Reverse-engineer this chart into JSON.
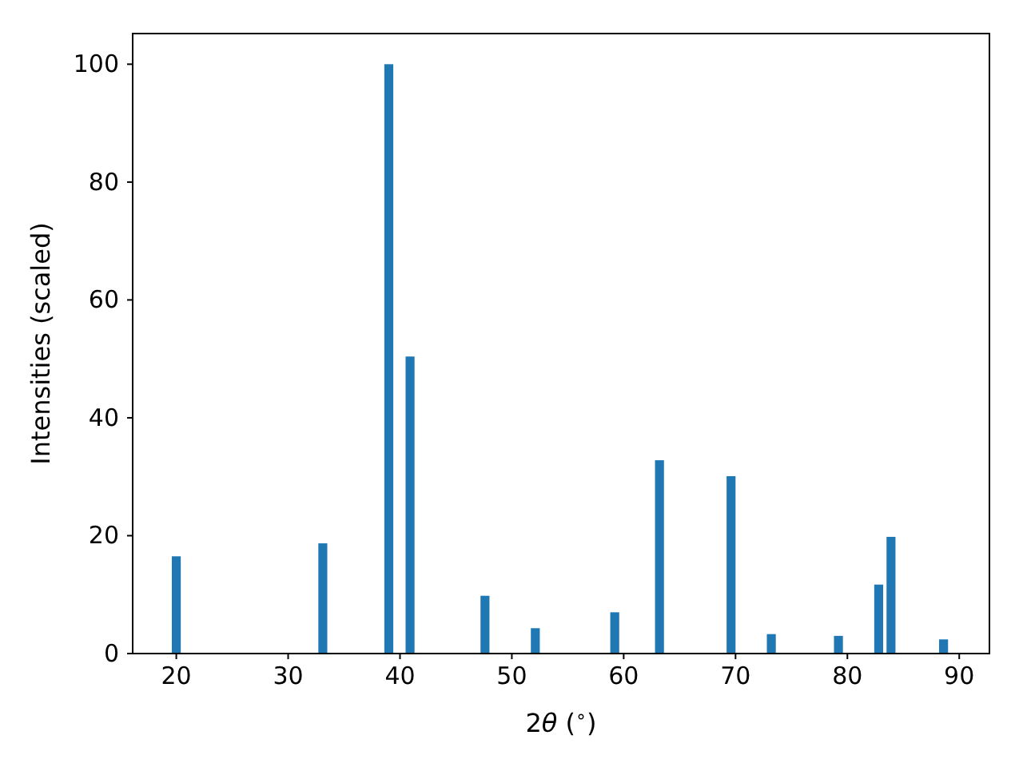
{
  "chart_data": {
    "type": "bar",
    "xlabel": "2θ ($^{∘}$)",
    "ylabel": "Intensities (scaled)",
    "x": [
      20.0,
      33.1,
      39.0,
      40.9,
      47.6,
      52.1,
      59.2,
      63.2,
      69.6,
      73.2,
      79.2,
      82.8,
      83.9,
      88.6
    ],
    "values": [
      16.5,
      18.7,
      100,
      50.4,
      9.8,
      4.3,
      7.0,
      32.8,
      30.1,
      3.3,
      3.0,
      11.7,
      19.8,
      2.4
    ],
    "color": "#1f77b4",
    "xlim": [
      16.1,
      92.7
    ],
    "xticks": [
      20,
      30,
      40,
      50,
      60,
      70,
      80,
      90
    ],
    "ylim": [
      0,
      105.2
    ],
    "yticks": [
      0,
      20,
      40,
      60,
      80,
      100
    ]
  }
}
